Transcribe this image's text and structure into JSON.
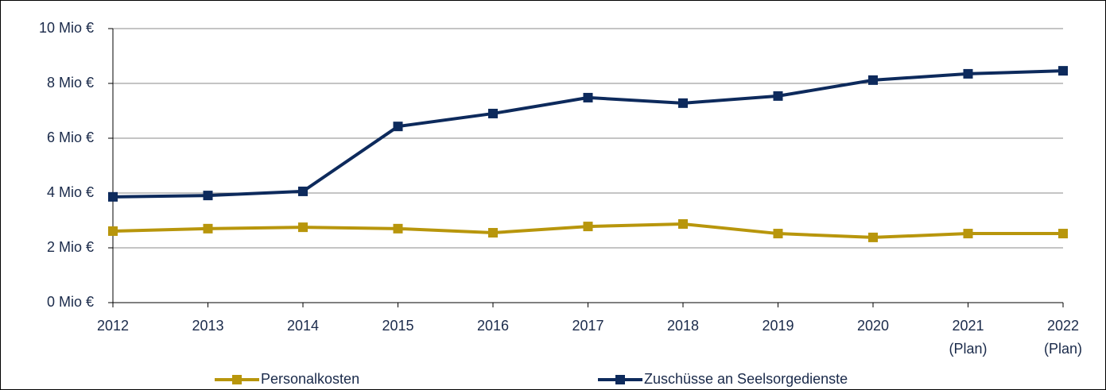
{
  "chart_data": {
    "type": "line",
    "categories": [
      "2012",
      "2013",
      "2014",
      "2015",
      "2016",
      "2017",
      "2018",
      "2019",
      "2020",
      "2021\n(Plan)",
      "2022\n(Plan)"
    ],
    "series": [
      {
        "name": "Personalkosten",
        "color": "#b8960c",
        "values": [
          2.61,
          2.7,
          2.75,
          2.7,
          2.55,
          2.78,
          2.87,
          2.52,
          2.38,
          2.52,
          2.52
        ]
      },
      {
        "name": "Zuschüsse an Seelsorgedienste",
        "color": "#0d2a5c",
        "values": [
          3.86,
          3.91,
          4.06,
          6.43,
          6.9,
          7.48,
          7.28,
          7.54,
          8.12,
          8.35,
          8.46
        ]
      }
    ],
    "ylim": [
      0,
      10
    ],
    "yticks": [
      {
        "value": 0,
        "label": "0 Mio €"
      },
      {
        "value": 2,
        "label": "2 Mio €"
      },
      {
        "value": 4,
        "label": "4 Mio €"
      },
      {
        "value": 6,
        "label": "6 Mio €"
      },
      {
        "value": 8,
        "label": "8 Mio €"
      },
      {
        "value": 10,
        "label": "10 Mio €"
      }
    ],
    "grid": true,
    "legend": "bottom"
  }
}
